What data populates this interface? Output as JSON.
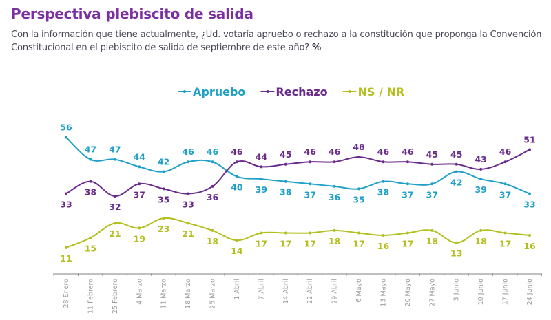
{
  "header": {
    "title": "Perspectiva plebiscito de salida",
    "subtitle": "Con la información que tiene actualmente, ¿Ud. votaría apruebo o rechazo a la constitución que proponga la Convención Constitucional en el plebiscito de salida de septiembre de este año?",
    "unit": "%"
  },
  "colors": {
    "title": "#7b2fa0",
    "apruebo": "#1fa0c8",
    "rechazo": "#6a2c8c",
    "nsnr": "#b3bf1e",
    "axis": "#9a9a9a"
  },
  "chart_data": {
    "type": "line",
    "title": "Perspectiva plebiscito de salida",
    "xlabel": "",
    "ylabel": "%",
    "ylim": [
      0,
      60
    ],
    "grid": false,
    "legend": "top-center",
    "categories": [
      "28 Enero",
      "11 Febrero",
      "25 Febrero",
      "4 Marzo",
      "11 Marzo",
      "18 Marzo",
      "25 Marzo",
      "1 Abril",
      "7 Abril",
      "14 Abril",
      "22 Abril",
      "29 Abril",
      "6 Mayo",
      "13 Mayo",
      "20 Mayo",
      "27 Mayo",
      "3 Junio",
      "10 Junio",
      "17 Junio",
      "24 Junio"
    ],
    "series": [
      {
        "name": "Apruebo",
        "key": "apruebo",
        "values": [
          56,
          47,
          47,
          44,
          42,
          46,
          46,
          40,
          39,
          38,
          37,
          36,
          35,
          38,
          37,
          37,
          42,
          39,
          37,
          33
        ]
      },
      {
        "name": "Rechazo",
        "key": "rechazo",
        "values": [
          33,
          38,
          32,
          37,
          35,
          33,
          36,
          46,
          44,
          45,
          46,
          46,
          48,
          46,
          46,
          45,
          45,
          43,
          46,
          51
        ]
      },
      {
        "name": "NS / NR",
        "key": "nsnr",
        "values": [
          11,
          15,
          21,
          19,
          23,
          21,
          18,
          14,
          17,
          17,
          17,
          18,
          17,
          16,
          17,
          18,
          13,
          18,
          17,
          16
        ]
      }
    ]
  }
}
